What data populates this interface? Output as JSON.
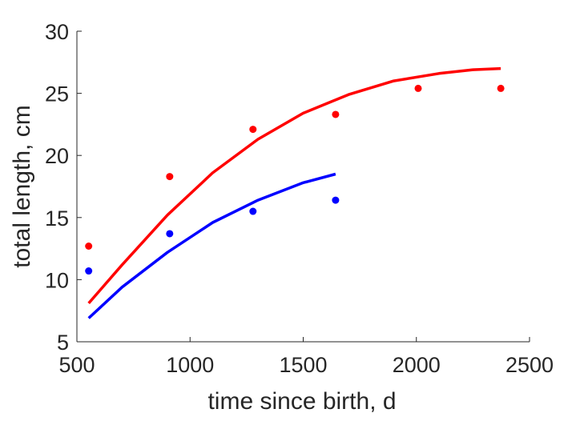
{
  "chart_data": {
    "type": "scatter",
    "xlabel": "time since birth, d",
    "ylabel": "total length, cm",
    "xlim": [
      500,
      2500
    ],
    "ylim": [
      5,
      30
    ],
    "xticks": [
      500,
      1000,
      1500,
      2000,
      2500
    ],
    "yticks": [
      5,
      10,
      15,
      20,
      25,
      30
    ],
    "grid": false,
    "series": [
      {
        "color": "#ff0000",
        "kind": "points",
        "x": [
          552,
          910,
          1278,
          1643,
          2008,
          2373
        ],
        "y": [
          12.7,
          18.3,
          22.1,
          23.3,
          25.4,
          25.4
        ]
      },
      {
        "color": "#0000ff",
        "kind": "points",
        "x": [
          552,
          910,
          1278,
          1643
        ],
        "y": [
          10.7,
          13.7,
          15.5,
          16.4
        ]
      },
      {
        "color": "#ff0000",
        "kind": "line",
        "x": [
          552,
          700,
          900,
          1100,
          1300,
          1500,
          1700,
          1900,
          2100,
          2250,
          2373
        ],
        "y": [
          8.1,
          11.2,
          15.2,
          18.6,
          21.3,
          23.4,
          24.9,
          26.0,
          26.6,
          26.9,
          27.0
        ]
      },
      {
        "color": "#0000ff",
        "kind": "line",
        "x": [
          552,
          700,
          900,
          1100,
          1300,
          1500,
          1643
        ],
        "y": [
          6.9,
          9.4,
          12.2,
          14.6,
          16.4,
          17.8,
          18.5
        ]
      }
    ]
  }
}
